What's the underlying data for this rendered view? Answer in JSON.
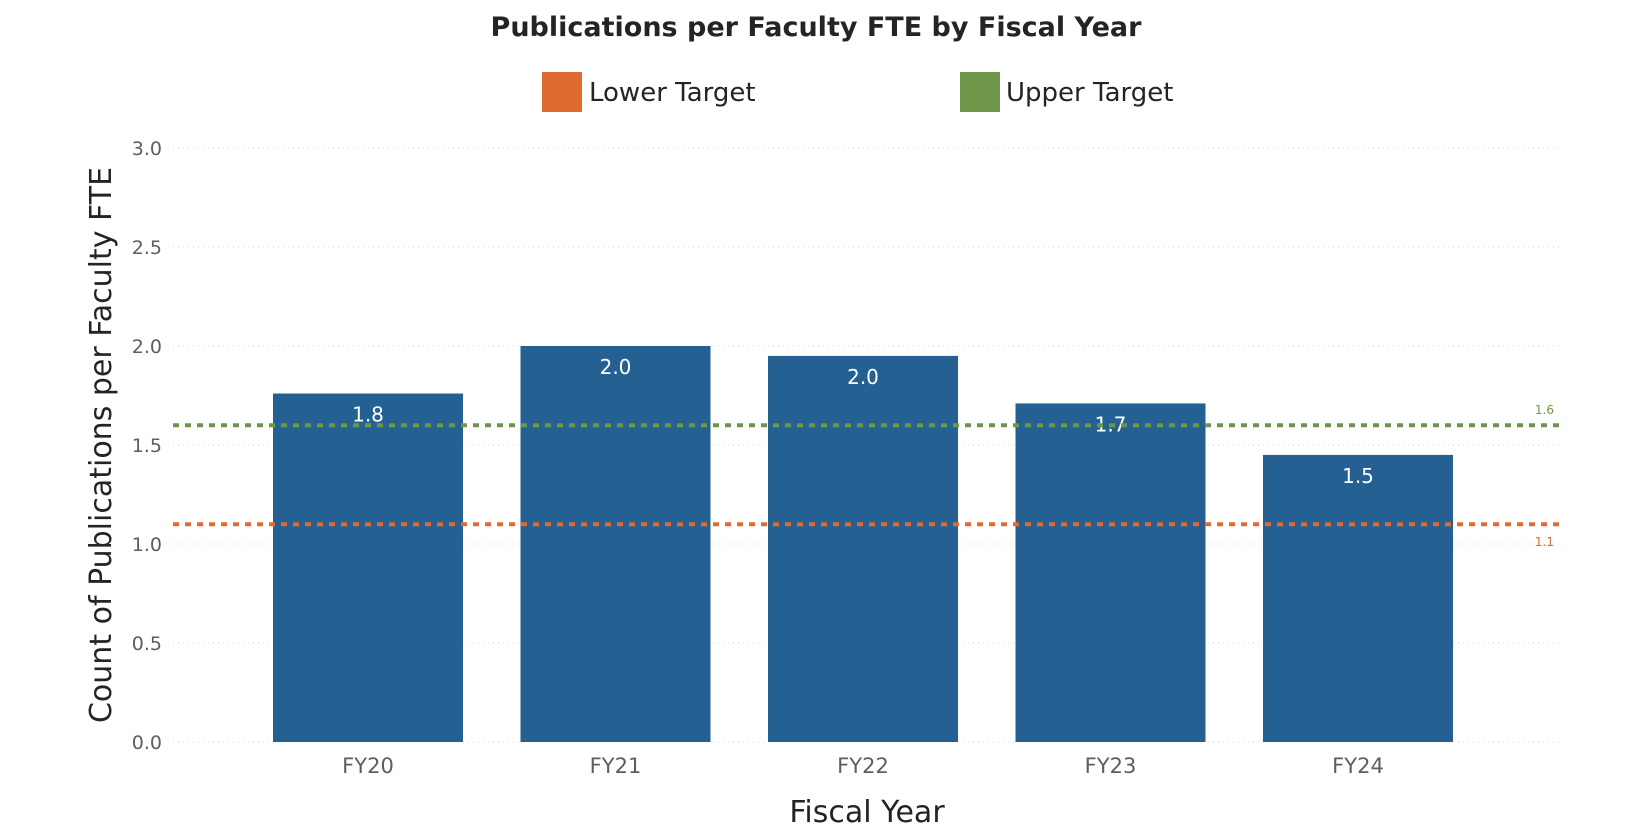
{
  "chart_data": {
    "type": "bar",
    "title": "Publications per Faculty FTE by Fiscal Year",
    "xlabel": "Fiscal Year",
    "ylabel": "Count of Publications per Faculty FTE",
    "categories": [
      "FY20",
      "FY21",
      "FY22",
      "FY23",
      "FY24"
    ],
    "values": [
      1.76,
      2.0,
      1.95,
      1.71,
      1.45
    ],
    "data_labels": [
      "1.8",
      "2.0",
      "2.0",
      "1.7",
      "1.5"
    ],
    "ylim": [
      0,
      3.0
    ],
    "yticks": [
      "0.0",
      "0.5",
      "1.0",
      "1.5",
      "2.0",
      "2.5",
      "3.0"
    ],
    "grid": true,
    "bar_color": "#246192",
    "reference_lines": [
      {
        "name": "Lower Target",
        "value": 1.1,
        "label": "1.1",
        "color": "#E06B30"
      },
      {
        "name": "Upper Target",
        "value": 1.6,
        "label": "1.6",
        "color": "#6E974A"
      }
    ],
    "legend": {
      "placement": "top-center",
      "entries": [
        "Lower Target",
        "Upper Target"
      ]
    }
  }
}
